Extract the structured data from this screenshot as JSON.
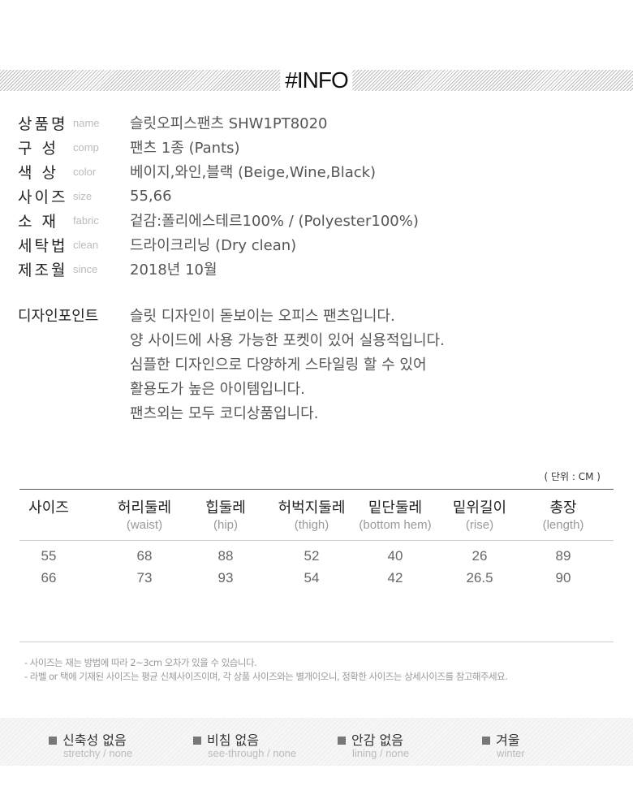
{
  "header": {
    "title": "#INFO"
  },
  "info": [
    {
      "label": "상품명",
      "sub": "name",
      "value": "슬릿오피스팬츠  SHW1PT8020"
    },
    {
      "label": "구  성",
      "sub": "comp",
      "value": "팬츠 1종 (Pants)"
    },
    {
      "label": "색  상",
      "sub": "color",
      "value": "베이지,와인,블랙 (Beige,Wine,Black)"
    },
    {
      "label": "사이즈",
      "sub": "size",
      "value": "55,66"
    },
    {
      "label": "소  재",
      "sub": "fabric",
      "value": "겉감:폴리에스테르100% / (Polyester100%)"
    },
    {
      "label": "세탁법",
      "sub": "clean",
      "value": "드라이크리닝 (Dry clean)"
    },
    {
      "label": "제조월",
      "sub": "since",
      "value": "2018년 10월"
    }
  ],
  "design_point": {
    "label": "디자인포인트",
    "lines": [
      "슬릿 디자인이 돋보이는 오피스 팬츠입니다.",
      "양 사이드에 사용 가능한 포켓이 있어 실용적입니다.",
      "심플한 디자인으로 다양하게 스타일링 할 수 있어",
      "활용도가 높은 아이템입니다.",
      "팬츠외는 모두 코디상품입니다."
    ]
  },
  "size_table": {
    "unit": "( 단위 : CM )",
    "headers": [
      {
        "ko": "사이즈",
        "en": ""
      },
      {
        "ko": "허리둘레",
        "en": "(waist)"
      },
      {
        "ko": "힙둘레",
        "en": "(hip)"
      },
      {
        "ko": "허벅지둘레",
        "en": "(thigh)"
      },
      {
        "ko": "밑단둘레",
        "en": "(bottom hem)"
      },
      {
        "ko": "밑위길이",
        "en": "(rise)"
      },
      {
        "ko": "총장",
        "en": "(length)"
      }
    ],
    "rows": [
      [
        "55",
        "68",
        "88",
        "52",
        "40",
        "26",
        "89"
      ],
      [
        "66",
        "73",
        "93",
        "54",
        "42",
        "26.5",
        "90"
      ]
    ]
  },
  "notes": [
    "- 사이즈는 재는 방법에 따라 2~3cm 오차가 있을 수 있습니다.",
    "- 라벨 or 택에 기재된 사이즈는 평균 신체사이즈이며, 각 상품 사이즈와는 별개이오니, 정확한 사이즈는 상세사이즈를 참고해주세요."
  ],
  "features": [
    {
      "ko": "신축성 없음",
      "en": "stretchy / none"
    },
    {
      "ko": "비침 없음",
      "en": "see-through / none"
    },
    {
      "ko": "안감 없음",
      "en": "lining / none"
    },
    {
      "ko": "겨울",
      "en": "winter"
    }
  ]
}
